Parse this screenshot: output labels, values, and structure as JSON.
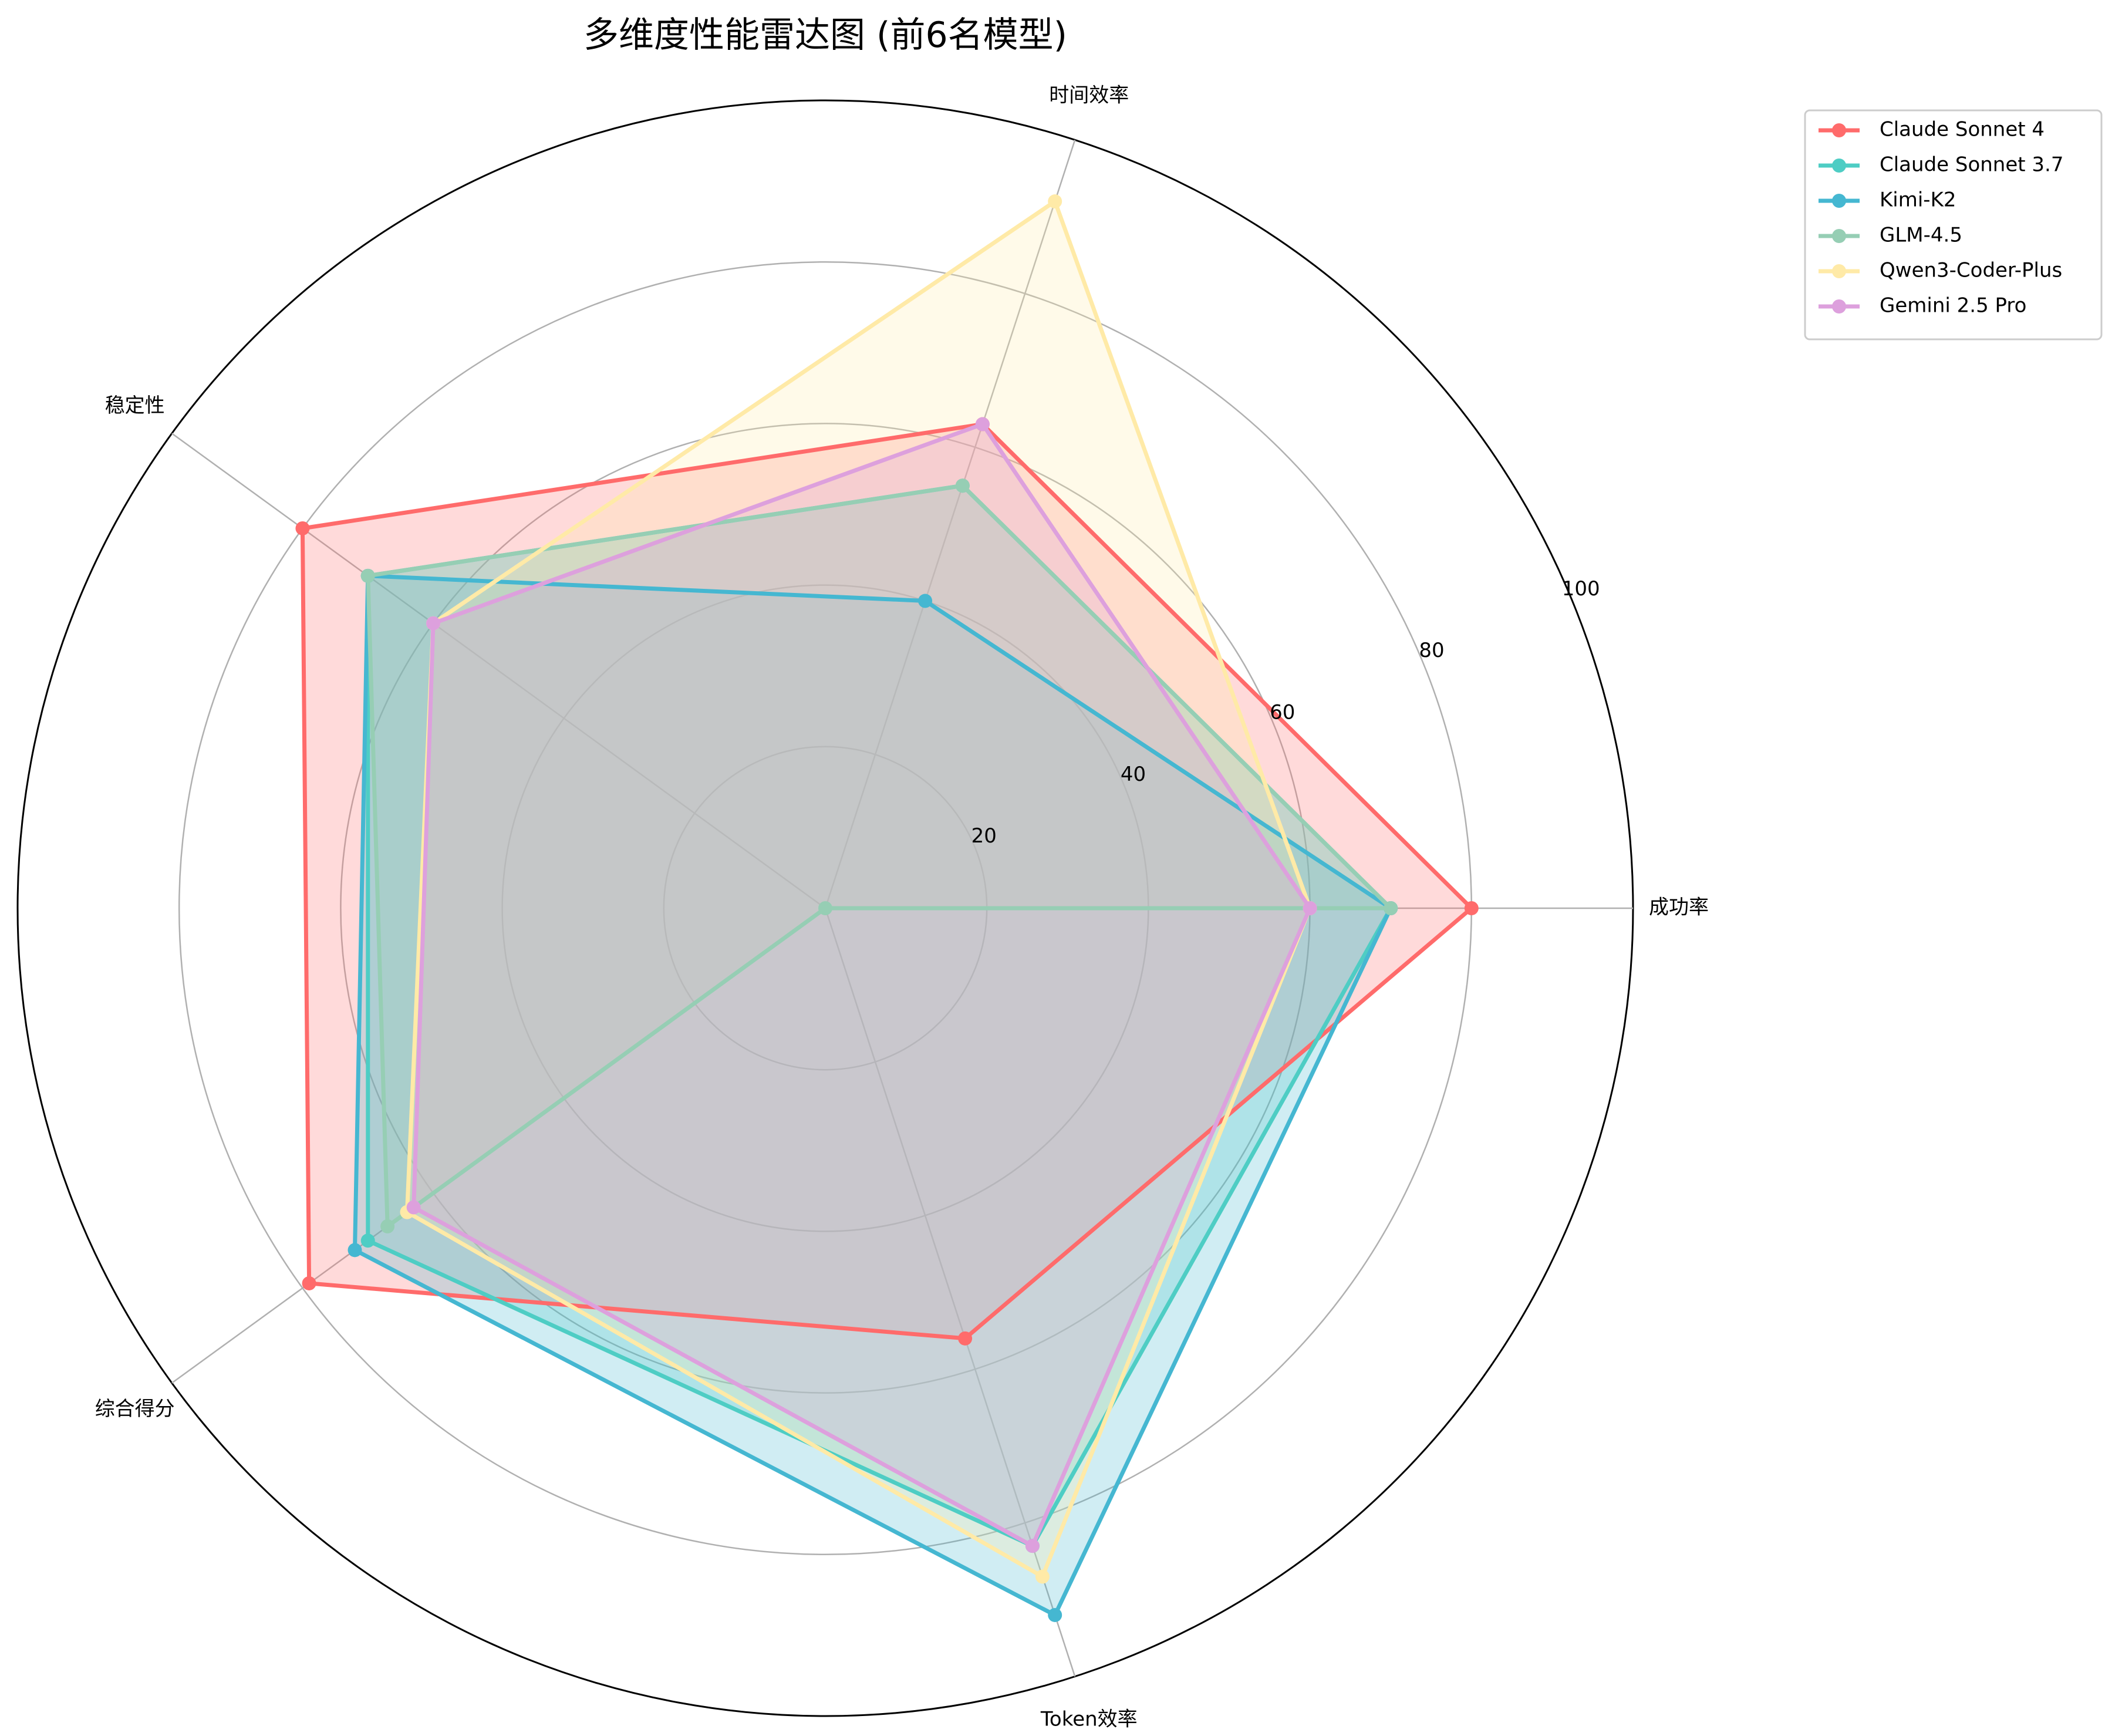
{
  "chart_data": {
    "type": "radar",
    "title": "多维度性能雷达图 (前6名模型)",
    "axes": [
      "成功率",
      "时间效率",
      "稳定性",
      "综合得分",
      "Token效率"
    ],
    "rlim": [
      0,
      100
    ],
    "rticks": [
      20,
      40,
      60,
      80,
      100
    ],
    "grid": true,
    "legend_position": "upper-right-outside",
    "series": [
      {
        "name": "Claude Sonnet 4",
        "color": "#ff6b6b",
        "values": [
          80,
          63,
          80,
          79,
          56
        ]
      },
      {
        "name": "Claude Sonnet 3.7",
        "color": "#4ecdc4",
        "values": [
          70,
          55,
          70,
          70,
          83
        ]
      },
      {
        "name": "Kimi-K2",
        "color": "#45b7d1",
        "values": [
          70,
          40,
          70,
          72,
          92
        ]
      },
      {
        "name": "GLM-4.5",
        "color": "#96ceb4",
        "values": [
          70,
          55,
          70,
          67,
          0
        ]
      },
      {
        "name": "Qwen3-Coder-Plus",
        "color": "#ffeaa7",
        "values": [
          60,
          92,
          60,
          64,
          87
        ]
      },
      {
        "name": "Gemini 2.5 Pro",
        "color": "#dda0dd",
        "values": [
          60,
          63,
          60,
          63,
          83
        ]
      }
    ]
  }
}
